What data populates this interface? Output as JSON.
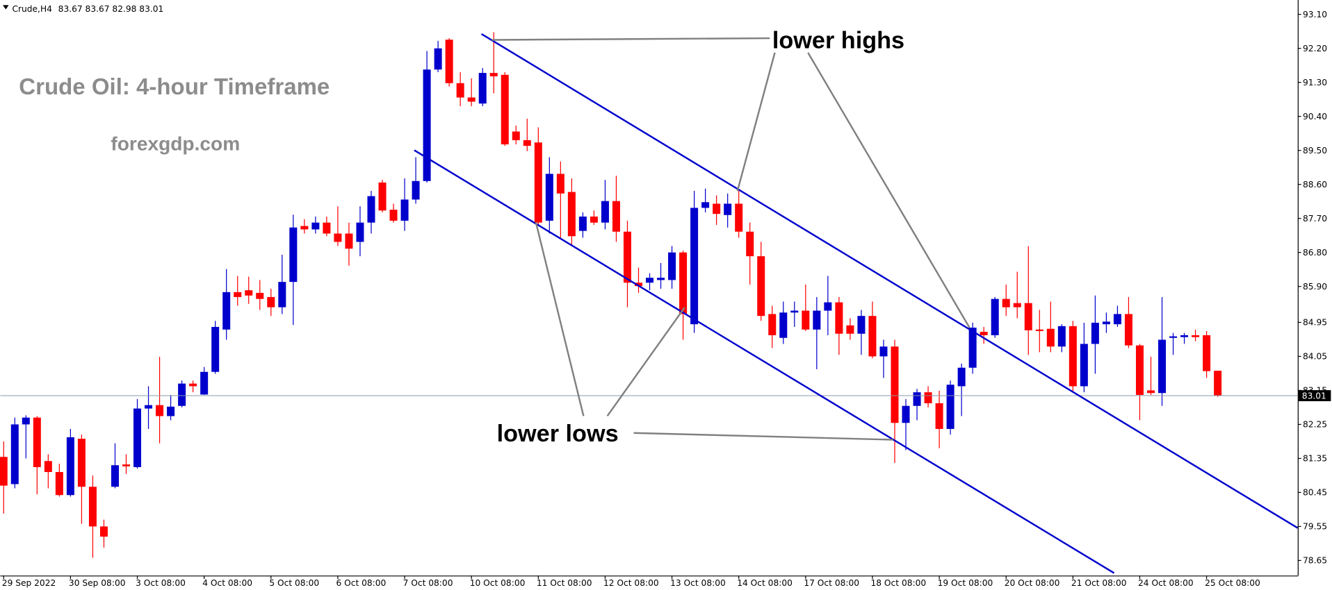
{
  "chart_data": {
    "type": "candlestick",
    "symbol": "Crude,H4",
    "header_values": [
      83.67,
      83.67,
      82.98,
      83.01
    ],
    "title": "Crude Oil: 4-hour Timeframe",
    "subtitle": "forexgdp.com",
    "annotations": [
      "lower highs",
      "lower lows"
    ],
    "up_color": "#0000cd",
    "down_color": "#ff0000",
    "last_price": 83.01,
    "categories": [
      "29 Sep 2022",
      null,
      null,
      null,
      null,
      null,
      "30 Sep 08:00",
      null,
      null,
      null,
      null,
      null,
      "3 Oct 08:00",
      null,
      null,
      null,
      null,
      null,
      "4 Oct 08:00",
      null,
      null,
      null,
      null,
      null,
      "5 Oct 08:00",
      null,
      null,
      null,
      null,
      null,
      "6 Oct 08:00",
      null,
      null,
      null,
      null,
      null,
      "7 Oct 08:00",
      null,
      null,
      null,
      null,
      null,
      "10 Oct 08:00",
      null,
      null,
      null,
      null,
      null,
      "11 Oct 08:00",
      null,
      null,
      null,
      null,
      null,
      "12 Oct 08:00",
      null,
      null,
      null,
      null,
      null,
      "13 Oct 08:00",
      null,
      null,
      null,
      null,
      null,
      "14 Oct 08:00",
      null,
      null,
      null,
      null,
      null,
      "17 Oct 08:00",
      null,
      null,
      null,
      null,
      null,
      "18 Oct 08:00",
      null,
      null,
      null,
      null,
      null,
      "19 Oct 08:00",
      null,
      null,
      null,
      null,
      null,
      "20 Oct 08:00",
      null,
      null,
      null,
      null,
      null,
      "21 Oct 08:00",
      null,
      null,
      null,
      null,
      null,
      "24 Oct 08:00",
      null,
      null,
      null,
      null,
      null,
      "25 Oct 08:00",
      null
    ],
    "open": [
      81.39,
      80.67,
      82.25,
      82.43,
      81.28,
      80.99,
      80.38,
      81.87,
      80.6,
      79.55,
      80.6,
      81.19,
      81.12,
      82.67,
      82.76,
      82.47,
      82.74,
      83.33,
      83.04,
      83.64,
      84.76,
      85.75,
      85.8,
      85.73,
      85.62,
      85.35,
      86.02,
      87.5,
      87.41,
      87.59,
      87.3,
      87.3,
      87.08,
      87.59,
      88.65,
      87.93,
      87.64,
      88.2,
      88.69,
      91.64,
      92.43,
      91.28,
      90.9,
      90.74,
      91.55,
      91.5,
      90.0,
      89.77,
      89.71,
      87.64,
      88.88,
      88.4,
      87.37,
      87.75,
      87.59,
      88.16,
      87.35,
      86.0,
      86.0,
      86.07,
      86.07,
      86.8,
      84.9,
      87.98,
      88.09,
      87.79,
      88.09,
      87.35,
      86.7,
      85.17,
      84.54,
      85.21,
      85.26,
      84.76,
      85.26,
      85.48,
      84.87,
      84.65,
      85.12,
      84.05,
      84.31,
      82.29,
      82.74,
      83.1,
      82.81,
      82.13,
      83.26,
      83.75,
      84.7,
      84.61,
      85.57,
      85.46,
      85.46,
      84.76,
      84.78,
      84.31,
      84.85,
      83.26,
      84.38,
      84.9,
      84.9,
      85.17,
      84.34,
      83.15,
      83.08,
      84.54,
      84.56,
      84.61,
      84.61,
      83.67
    ],
    "high": [
      81.8,
      82.43,
      82.49,
      82.47,
      81.46,
      81.21,
      82.13,
      81.98,
      80.9,
      79.73,
      81.75,
      81.46,
      82.92,
      83.26,
      84.04,
      83.03,
      83.41,
      83.41,
      83.77,
      84.99,
      86.36,
      86.18,
      86.16,
      86.07,
      85.84,
      86.74,
      87.8,
      87.68,
      87.75,
      87.75,
      88.02,
      87.59,
      88.02,
      88.43,
      88.72,
      88.09,
      88.76,
      89.32,
      92.13,
      92.4,
      92.47,
      91.57,
      91.41,
      91.68,
      92.63,
      91.57,
      90.16,
      90.34,
      90.11,
      89.32,
      89.21,
      88.76,
      87.86,
      87.91,
      88.72,
      88.83,
      87.64,
      86.4,
      86.25,
      86.52,
      86.97,
      86.85,
      88.43,
      88.49,
      88.31,
      88.36,
      88.43,
      87.59,
      87.08,
      85.39,
      85.5,
      85.5,
      85.95,
      85.62,
      86.18,
      85.62,
      85.06,
      85.28,
      85.5,
      84.49,
      84.49,
      82.92,
      83.19,
      83.26,
      83.14,
      83.41,
      83.86,
      84.94,
      84.83,
      85.62,
      85.95,
      86.29,
      86.97,
      85.28,
      85.5,
      84.9,
      84.99,
      84.94,
      85.66,
      85.21,
      85.39,
      85.62,
      84.38,
      84.04,
      85.62,
      84.67,
      84.67,
      84.76,
      84.72,
      83.67
    ],
    "low": [
      79.89,
      80.56,
      81.35,
      80.4,
      80.56,
      80.34,
      80.34,
      79.62,
      78.72,
      78.99,
      80.56,
      80.94,
      81.08,
      82.13,
      81.75,
      82.36,
      82.7,
      83.1,
      83.03,
      83.59,
      84.49,
      85.39,
      85.44,
      85.28,
      85.12,
      85.17,
      84.88,
      87.3,
      87.3,
      87.23,
      86.97,
      86.45,
      86.7,
      87.3,
      87.86,
      87.59,
      87.37,
      88.09,
      88.65,
      91.57,
      91.19,
      90.67,
      90.67,
      90.67,
      91.01,
      89.62,
      89.66,
      89.48,
      87.53,
      87.3,
      87.19,
      86.97,
      87.19,
      87.53,
      87.41,
      87.08,
      85.35,
      85.73,
      85.8,
      85.84,
      85.84,
      84.49,
      84.67,
      87.86,
      87.53,
      87.46,
      87.19,
      85.95,
      84.99,
      84.27,
      84.38,
      84.83,
      84.72,
      83.71,
      84.61,
      84.09,
      84.49,
      84.09,
      84.0,
      83.48,
      81.23,
      81.57,
      82.36,
      82.7,
      81.62,
      81.98,
      82.47,
      83.59,
      84.38,
      84.54,
      85.12,
      85.06,
      84.09,
      84.16,
      84.16,
      84.16,
      83.1,
      83.1,
      83.59,
      84.67,
      84.83,
      84.27,
      82.36,
      83.03,
      82.74,
      84.09,
      84.38,
      84.45,
      83.48,
      82.98
    ],
    "close": [
      80.63,
      82.25,
      82.43,
      81.12,
      80.99,
      80.38,
      81.91,
      80.6,
      79.55,
      79.28,
      81.17,
      81.14,
      82.67,
      82.76,
      82.47,
      82.72,
      83.33,
      83.26,
      83.64,
      84.83,
      85.75,
      85.62,
      85.66,
      85.57,
      85.35,
      86.02,
      87.46,
      87.41,
      87.59,
      87.3,
      87.08,
      86.9,
      87.59,
      88.29,
      87.91,
      87.64,
      88.2,
      88.69,
      91.64,
      92.2,
      91.28,
      90.9,
      90.79,
      91.55,
      91.46,
      89.66,
      89.77,
      89.62,
      87.59,
      88.88,
      88.36,
      87.23,
      87.75,
      87.59,
      88.16,
      87.35,
      86.0,
      85.91,
      86.13,
      86.13,
      86.8,
      85.17,
      87.98,
      88.13,
      87.82,
      88.09,
      87.35,
      86.7,
      85.12,
      84.61,
      85.21,
      85.26,
      84.76,
      85.26,
      85.48,
      84.65,
      84.65,
      85.12,
      84.05,
      84.31,
      82.29,
      82.74,
      83.1,
      82.81,
      82.13,
      83.3,
      83.75,
      84.81,
      84.61,
      85.57,
      85.35,
      85.35,
      84.74,
      84.72,
      84.31,
      84.85,
      83.26,
      84.38,
      84.94,
      84.97,
      85.17,
      84.34,
      83.03,
      83.08,
      84.49,
      84.58,
      84.61,
      84.56,
      83.66,
      83.01
    ],
    "ylim": [
      78.25,
      93.48
    ],
    "yticks": [
      {
        "value": 93.1,
        "label": "93.10"
      },
      {
        "value": 92.2,
        "label": "92.20"
      },
      {
        "value": 91.3,
        "label": "91.30"
      },
      {
        "value": 90.4,
        "label": "90.40"
      },
      {
        "value": 89.5,
        "label": "89.50"
      },
      {
        "value": 88.6,
        "label": "88.60"
      },
      {
        "value": 87.7,
        "label": "87.70"
      },
      {
        "value": 86.8,
        "label": "86.80"
      },
      {
        "value": 85.9,
        "label": "85.90"
      },
      84.95,
      84.05,
      83.15,
      82.25,
      81.35,
      80.45,
      79.55,
      78.65
    ]
  }
}
